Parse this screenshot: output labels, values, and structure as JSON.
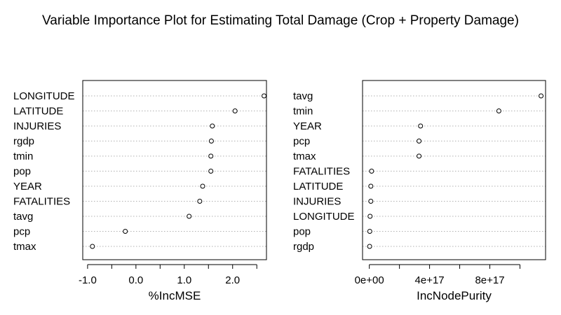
{
  "title": "Variable Importance Plot for Estimating Total Damage (Crop + Property Damage)",
  "chart_data": [
    {
      "type": "dotchart",
      "xlabel": "%IncMSE",
      "xlim": [
        -1.1,
        2.7
      ],
      "ticks": [
        -1.0,
        -0.5,
        0.0,
        0.5,
        1.0,
        1.5,
        2.0,
        2.5
      ],
      "tick_labels": [
        "-1.0",
        "",
        "0.0",
        "",
        "1.0",
        "",
        "2.0",
        ""
      ],
      "variables": [
        "LONGITUDE",
        "LATITUDE",
        "INJURIES",
        "rgdp",
        "tmin",
        "pop",
        "YEAR",
        "FATALITIES",
        "tavg",
        "pcp",
        "tmax"
      ],
      "values": [
        2.65,
        2.05,
        1.58,
        1.56,
        1.55,
        1.55,
        1.38,
        1.32,
        1.1,
        -0.22,
        -0.9
      ]
    },
    {
      "type": "dotchart",
      "xlabel": "IncNodePurity",
      "xlim": [
        -4.5e+16,
        1.17e+18
      ],
      "ticks": [
        0,
        2e+17,
        4e+17,
        6e+17,
        8e+17,
        1e+18
      ],
      "tick_labels": [
        "0e+00",
        "",
        "4e+17",
        "",
        "8e+17",
        ""
      ],
      "variables": [
        "tavg",
        "tmin",
        "YEAR",
        "pcp",
        "tmax",
        "FATALITIES",
        "LATITUDE",
        "INJURIES",
        "LONGITUDE",
        "pop",
        "rgdp"
      ],
      "values": [
        1.14e+18,
        8.6e+17,
        3.4e+17,
        3.3e+17,
        3.3e+17,
        1.5e+16,
        1e+16,
        1e+16,
        5000000000000000.0,
        3000000000000000.0,
        2000000000000000.0
      ]
    }
  ]
}
